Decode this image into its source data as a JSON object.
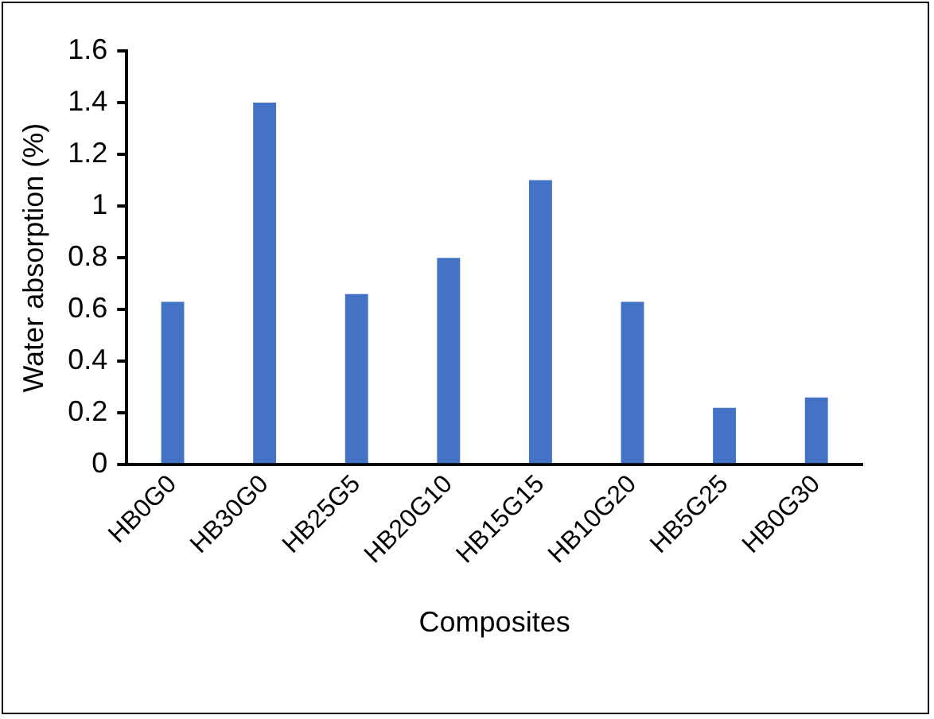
{
  "chart_data": {
    "type": "bar",
    "xlabel": "Composites",
    "ylabel": "Water absorption (%)",
    "categories": [
      "HB0G0",
      "HB30G0",
      "HB25G5",
      "HB20G10",
      "HB15G15",
      "HB10G20",
      "HB5G25",
      "HB0G30"
    ],
    "values": [
      0.63,
      1.4,
      0.66,
      0.8,
      1.1,
      0.63,
      0.22,
      0.26
    ],
    "color": "#4472c4",
    "ylim": [
      0,
      1.6
    ],
    "yticks": [
      0,
      0.2,
      0.4,
      0.6,
      0.8,
      1,
      1.2,
      1.4,
      1.6
    ],
    "grid": false,
    "legend": false
  }
}
